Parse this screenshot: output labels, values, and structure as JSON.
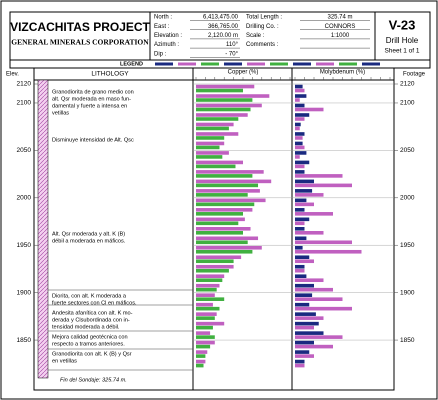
{
  "chart_data": {
    "type": "drill_log",
    "title": "VIZCACHITAS PROJECT",
    "subtitle": "GENERAL MINERALS CORPORATION",
    "fields_left": [
      {
        "label": "North :",
        "value": "6,413,475.00"
      },
      {
        "label": "East :",
        "value": "366,765.00"
      },
      {
        "label": "Elevation :",
        "value": "2,120.00 m"
      },
      {
        "label": "Azimuth :",
        "value": "110°"
      },
      {
        "label": "Dip :",
        "value": "- 70°"
      }
    ],
    "fields_right": [
      {
        "label": "Total Length :",
        "value": "325.74 m"
      },
      {
        "label": "Drilling Co. :",
        "value": "CONNORS"
      },
      {
        "label": "Scale :",
        "value": "1:1000"
      },
      {
        "label": "Comments :"
      }
    ],
    "hole_id": "V-23",
    "hole_type": "Drill Hole",
    "sheet": "Sheet 1 of 1",
    "legend_title": "LEGEND",
    "ylabel": "Elev.",
    "y2label": "Footage",
    "lithology_label": "LITHOLOGY",
    "ylim": [
      2120,
      1810
    ],
    "yticks": [
      2120,
      2100,
      2050,
      2000,
      1950,
      1900,
      1850
    ],
    "y2ticks": [
      2120,
      2100,
      2050,
      2000,
      1950,
      1900,
      1850
    ],
    "lithology_notes": [
      [
        "Granodiorita de grano medio con",
        "alt. Qsr moderada en maso fun-",
        "damental y fuerte a intensa en",
        "vetillas"
      ],
      [
        "Disminuye intensidad de Alt. Qsc"
      ],
      [
        "Alt. Qsr moderada y alt. K (B)",
        "débil a moderada en máficos."
      ],
      [
        "Diorita, con alt. K moderada a",
        "fuerte sectores con Cl en máficos."
      ],
      [
        "Andesita afanítica con alt. K mo-",
        "derada y Clsubordinada con in-",
        "tensidad moderada a débil."
      ],
      [
        "Mejora calidad geotécnica con",
        "respecto a tramos anteriores."
      ],
      [
        "Granodiorita con alt. K (B) y Qsr",
        "en vetillas"
      ],
      [
        "Fin del Sondaje: 325.74 m."
      ]
    ],
    "x": [
      2115,
      2105,
      2095,
      2085,
      2075,
      2065,
      2055,
      2045,
      2035,
      2025,
      2015,
      2005,
      1995,
      1985,
      1975,
      1965,
      1955,
      1945,
      1935,
      1925,
      1915,
      1905,
      1895,
      1885,
      1875,
      1865,
      1855,
      1845,
      1835,
      1825
    ],
    "panels": [
      {
        "name": "Copper (%)",
        "xlim": [
          0,
          1
        ],
        "series": [
          {
            "color": "#c060c0",
            "values": [
              0.62,
              0.78,
              0.7,
              0.55,
              0.4,
              0.45,
              0.3,
              0.35,
              0.5,
              0.72,
              0.8,
              0.68,
              0.74,
              0.6,
              0.52,
              0.58,
              0.66,
              0.7,
              0.48,
              0.4,
              0.3,
              0.25,
              0.2,
              0.18,
              0.22,
              0.3,
              0.15,
              0.2,
              0.12,
              0.1
            ]
          },
          {
            "color": "#40b040",
            "values": [
              0.5,
              0.6,
              0.58,
              0.45,
              0.35,
              0.3,
              0.25,
              0.28,
              0.42,
              0.6,
              0.66,
              0.55,
              0.62,
              0.5,
              0.45,
              0.5,
              0.55,
              0.6,
              0.4,
              0.35,
              0.28,
              0.22,
              0.3,
              0.25,
              0.2,
              0.18,
              0.2,
              0.15,
              0.1,
              0.08
            ]
          }
        ]
      },
      {
        "name": "Molybdenum (%)",
        "xlim": [
          0,
          1
        ],
        "series": [
          {
            "color": "#1a2a80",
            "values": [
              0.08,
              0.12,
              0.1,
              0.15,
              0.06,
              0.1,
              0.08,
              0.12,
              0.15,
              0.1,
              0.2,
              0.18,
              0.12,
              0.1,
              0.15,
              0.1,
              0.12,
              0.08,
              0.15,
              0.1,
              0.12,
              0.2,
              0.18,
              0.15,
              0.22,
              0.25,
              0.3,
              0.2,
              0.15,
              0.1
            ]
          },
          {
            "color": "#c060c0",
            "values": [
              0.1,
              0.05,
              0.3,
              0.1,
              0.05,
              0.08,
              0.1,
              0.05,
              0.1,
              0.5,
              0.6,
              0.3,
              0.2,
              0.4,
              0.1,
              0.3,
              0.6,
              0.7,
              0.2,
              0.1,
              0.3,
              0.4,
              0.5,
              0.6,
              0.3,
              0.2,
              0.5,
              0.4,
              0.2,
              0.1
            ]
          }
        ]
      }
    ]
  }
}
